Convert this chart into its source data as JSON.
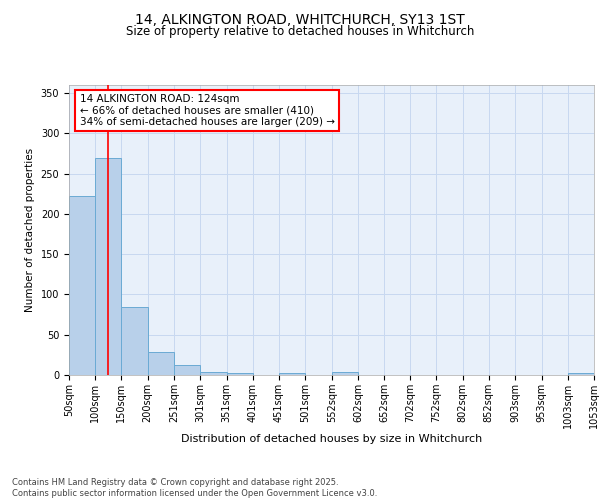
{
  "title": "14, ALKINGTON ROAD, WHITCHURCH, SY13 1ST",
  "subtitle": "Size of property relative to detached houses in Whitchurch",
  "xlabel": "Distribution of detached houses by size in Whitchurch",
  "ylabel": "Number of detached properties",
  "bin_edges": [
    50,
    100,
    150,
    200,
    251,
    301,
    351,
    401,
    451,
    501,
    552,
    602,
    652,
    702,
    752,
    802,
    852,
    903,
    953,
    1003,
    1053
  ],
  "hist_values": [
    222,
    270,
    84,
    29,
    12,
    4,
    2,
    0,
    2,
    0,
    4,
    0,
    0,
    0,
    0,
    0,
    0,
    0,
    0,
    3
  ],
  "bar_color": "#b8d0ea",
  "bar_edge_color": "#6aaad4",
  "grid_color": "#c8d8f0",
  "background_color": "#e8f0fa",
  "annotation_text": "14 ALKINGTON ROAD: 124sqm\n← 66% of detached houses are smaller (410)\n34% of semi-detached houses are larger (209) →",
  "red_line_x": 124,
  "ylim": [
    0,
    360
  ],
  "yticks": [
    0,
    50,
    100,
    150,
    200,
    250,
    300,
    350
  ],
  "footnote": "Contains HM Land Registry data © Crown copyright and database right 2025.\nContains public sector information licensed under the Open Government Licence v3.0.",
  "title_fontsize": 10,
  "subtitle_fontsize": 8.5,
  "xlabel_fontsize": 8,
  "ylabel_fontsize": 7.5,
  "tick_fontsize": 7,
  "footnote_fontsize": 6
}
